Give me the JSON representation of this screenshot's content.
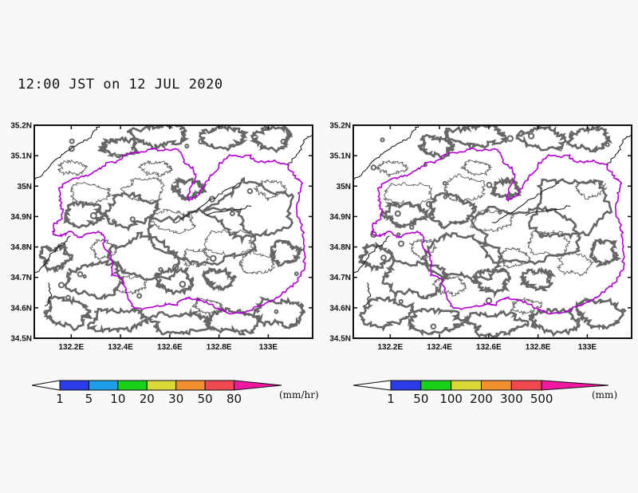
{
  "title": "12:00 JST on 12 JUL 2020",
  "map_extent": {
    "lon": [
      132.05,
      133.18
    ],
    "lat": [
      34.5,
      35.2
    ]
  },
  "lat_ticks": [
    {
      "value": 35.2,
      "label": "35.2N"
    },
    {
      "value": 35.1,
      "label": "35.1N"
    },
    {
      "value": 35.0,
      "label": "35N"
    },
    {
      "value": 34.9,
      "label": "34.9N"
    },
    {
      "value": 34.8,
      "label": "34.8N"
    },
    {
      "value": 34.7,
      "label": "34.7N"
    },
    {
      "value": 34.6,
      "label": "34.6N"
    },
    {
      "value": 34.5,
      "label": "34.5N"
    }
  ],
  "lon_ticks": [
    {
      "value": 132.2,
      "label": "132.2E"
    },
    {
      "value": 132.4,
      "label": "132.4E"
    },
    {
      "value": 132.6,
      "label": "132.6E"
    },
    {
      "value": 132.8,
      "label": "132.8E"
    },
    {
      "value": 133.0,
      "label": "133E"
    }
  ],
  "colors": {
    "boundary": "#b000d0",
    "terrain_thick": "#666666",
    "terrain_thin": "#666666",
    "coast": "#111111"
  },
  "panels": [
    {
      "id": "rate",
      "colorbar": {
        "labels": [
          "1",
          "5",
          "10",
          "20",
          "30",
          "50",
          "80"
        ],
        "colors": [
          "#2a3ce8",
          "#1e9ee8",
          "#18d018",
          "#d8d838",
          "#f09030",
          "#f04850",
          "#f018a0"
        ],
        "unit": "(mm/hr)"
      }
    },
    {
      "id": "accum",
      "colorbar": {
        "labels": [
          "1",
          "50",
          "100",
          "200",
          "300",
          "500"
        ],
        "colors": [
          "#2a3ce8",
          "#18d018",
          "#d8d838",
          "#f09030",
          "#f04850",
          "#f018a0"
        ],
        "unit": "(mm)"
      }
    }
  ]
}
